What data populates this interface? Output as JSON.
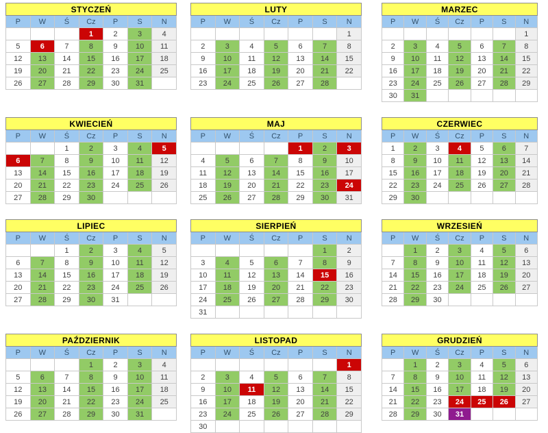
{
  "calendar": {
    "year_layout": "3x4",
    "day_headers": [
      "P",
      "W",
      "Ś",
      "Cz",
      "P",
      "S",
      "N"
    ],
    "colors": {
      "title_bg": "#FFFF63",
      "day_header_bg": "#9DC8F0",
      "day_header_text": "#33516B",
      "highlight_green": "#92CB66",
      "holiday_red": "#CB0505",
      "special_purple": "#8F1B8F",
      "sunday_gray": "#EFEFEF",
      "day_text": "#3F3F3F"
    },
    "cell_codes": {
      "": "empty",
      "plain number": "regular day (white)",
      "g": "green highlighted day",
      "r": "red holiday (white bold text)",
      "p": "purple special day (white bold text)",
      "s": "gray Sunday"
    },
    "months": [
      {
        "name": "STYCZEŃ",
        "weeks": [
          [
            "",
            "",
            "",
            "1r",
            "2",
            "3g",
            "4s"
          ],
          [
            "5",
            "6r",
            "7",
            "8g",
            "9",
            "10g",
            "11s"
          ],
          [
            "12",
            "13g",
            "14",
            "15g",
            "16",
            "17g",
            "18s"
          ],
          [
            "19",
            "20g",
            "21",
            "22g",
            "23",
            "24g",
            "25s"
          ],
          [
            "26",
            "27g",
            "28",
            "29g",
            "30",
            "31g",
            ""
          ]
        ]
      },
      {
        "name": "LUTY",
        "weeks": [
          [
            "",
            "",
            "",
            "",
            "",
            "",
            "1s"
          ],
          [
            "2",
            "3g",
            "4",
            "5g",
            "6",
            "7g",
            "8s"
          ],
          [
            "9",
            "10g",
            "11",
            "12g",
            "13",
            "14g",
            "15s"
          ],
          [
            "16",
            "17g",
            "18",
            "19g",
            "20",
            "21g",
            "22s"
          ],
          [
            "23",
            "24g",
            "25",
            "26g",
            "27",
            "28g",
            ""
          ]
        ]
      },
      {
        "name": "MARZEC",
        "weeks": [
          [
            "",
            "",
            "",
            "",
            "",
            "",
            "1s"
          ],
          [
            "2",
            "3g",
            "4",
            "5g",
            "6",
            "7g",
            "8s"
          ],
          [
            "9",
            "10g",
            "11",
            "12g",
            "13",
            "14g",
            "15s"
          ],
          [
            "16",
            "17g",
            "18",
            "19g",
            "20",
            "21g",
            "22s"
          ],
          [
            "23",
            "24g",
            "25",
            "26g",
            "27",
            "28g",
            "29s"
          ],
          [
            "30",
            "31g",
            "",
            "",
            "",
            "",
            ""
          ]
        ]
      },
      {
        "name": "KWIECIEŃ",
        "weeks": [
          [
            "",
            "",
            "1",
            "2g",
            "3",
            "4g",
            "5r"
          ],
          [
            "6r",
            "7g",
            "8",
            "9g",
            "10",
            "11g",
            "12s"
          ],
          [
            "13",
            "14g",
            "15",
            "16g",
            "17",
            "18g",
            "19s"
          ],
          [
            "20",
            "21g",
            "22",
            "23g",
            "24",
            "25g",
            "26s"
          ],
          [
            "27",
            "28g",
            "29",
            "30g",
            "",
            "",
            ""
          ]
        ]
      },
      {
        "name": "MAJ",
        "weeks": [
          [
            "",
            "",
            "",
            "",
            "1r",
            "2g",
            "3r"
          ],
          [
            "4",
            "5g",
            "6",
            "7g",
            "8",
            "9g",
            "10s"
          ],
          [
            "11",
            "12g",
            "13",
            "14g",
            "15",
            "16g",
            "17s"
          ],
          [
            "18",
            "19g",
            "20",
            "21g",
            "22",
            "23g",
            "24r"
          ],
          [
            "25",
            "26g",
            "27",
            "28g",
            "29",
            "30g",
            "31s"
          ]
        ]
      },
      {
        "name": "CZERWIEC",
        "weeks": [
          [
            "1",
            "2g",
            "3",
            "4r",
            "5",
            "6g",
            "7s"
          ],
          [
            "8",
            "9g",
            "10",
            "11g",
            "12",
            "13g",
            "14s"
          ],
          [
            "15",
            "16g",
            "17",
            "18g",
            "19",
            "20g",
            "21s"
          ],
          [
            "22",
            "23g",
            "24",
            "25g",
            "26",
            "27g",
            "28s"
          ],
          [
            "29",
            "30g",
            "",
            "",
            "",
            "",
            ""
          ]
        ]
      },
      {
        "name": "LIPIEC",
        "weeks": [
          [
            "",
            "",
            "1",
            "2g",
            "3",
            "4g",
            "5s"
          ],
          [
            "6",
            "7g",
            "8",
            "9g",
            "10",
            "11g",
            "12s"
          ],
          [
            "13",
            "14g",
            "15",
            "16g",
            "17",
            "18g",
            "19s"
          ],
          [
            "20",
            "21g",
            "22",
            "23g",
            "24",
            "25g",
            "26s"
          ],
          [
            "27",
            "28g",
            "29",
            "30g",
            "31",
            "",
            ""
          ]
        ]
      },
      {
        "name": "SIERPIEŃ",
        "weeks": [
          [
            "",
            "",
            "",
            "",
            "",
            "1g",
            "2s"
          ],
          [
            "3",
            "4g",
            "5",
            "6g",
            "7",
            "8g",
            "9s"
          ],
          [
            "10",
            "11g",
            "12",
            "13g",
            "14",
            "15r",
            "16s"
          ],
          [
            "17",
            "18g",
            "19",
            "20g",
            "21",
            "22g",
            "23s"
          ],
          [
            "24",
            "25g",
            "26",
            "27g",
            "28",
            "29g",
            "30s"
          ],
          [
            "31",
            "",
            "",
            "",
            "",
            "",
            ""
          ]
        ]
      },
      {
        "name": "WRZESIEŃ",
        "weeks": [
          [
            "",
            "1g",
            "2",
            "3g",
            "4",
            "5g",
            "6s"
          ],
          [
            "7",
            "8g",
            "9",
            "10g",
            "11",
            "12g",
            "13s"
          ],
          [
            "14",
            "15g",
            "16",
            "17g",
            "18",
            "19g",
            "20s"
          ],
          [
            "21",
            "22g",
            "23",
            "24g",
            "25",
            "26g",
            "27s"
          ],
          [
            "28",
            "29g",
            "30",
            "",
            "",
            "",
            ""
          ]
        ]
      },
      {
        "name": "PAŹDZIERNIK",
        "weeks": [
          [
            "",
            "",
            "",
            "1g",
            "2",
            "3g",
            "4s"
          ],
          [
            "5",
            "6g",
            "7",
            "8g",
            "9",
            "10g",
            "11s"
          ],
          [
            "12",
            "13g",
            "14",
            "15g",
            "16",
            "17g",
            "18s"
          ],
          [
            "19",
            "20g",
            "21",
            "22g",
            "23",
            "24g",
            "25s"
          ],
          [
            "26",
            "27g",
            "28",
            "29g",
            "30",
            "31g",
            ""
          ]
        ]
      },
      {
        "name": "LISTOPAD",
        "weeks": [
          [
            "",
            "",
            "",
            "",
            "",
            "",
            "1r"
          ],
          [
            "2",
            "3g",
            "4",
            "5g",
            "6",
            "7g",
            "8s"
          ],
          [
            "9",
            "10g",
            "11r",
            "12g",
            "13",
            "14g",
            "15s"
          ],
          [
            "16",
            "17g",
            "18",
            "19g",
            "20",
            "21g",
            "22s"
          ],
          [
            "23",
            "24g",
            "25",
            "26g",
            "27",
            "28g",
            "29s"
          ],
          [
            "30",
            "",
            "",
            "",
            "",
            "",
            ""
          ]
        ]
      },
      {
        "name": "GRUDZIEŃ",
        "weeks": [
          [
            "",
            "1g",
            "2",
            "3g",
            "4",
            "5g",
            "6s"
          ],
          [
            "7",
            "8g",
            "9",
            "10g",
            "11",
            "12g",
            "13s"
          ],
          [
            "14",
            "15g",
            "16",
            "17g",
            "18",
            "19g",
            "20s"
          ],
          [
            "21",
            "22g",
            "23",
            "24r",
            "25r",
            "26r",
            "27s"
          ],
          [
            "28",
            "29g",
            "30",
            "31p",
            "",
            "",
            ""
          ]
        ]
      }
    ]
  }
}
